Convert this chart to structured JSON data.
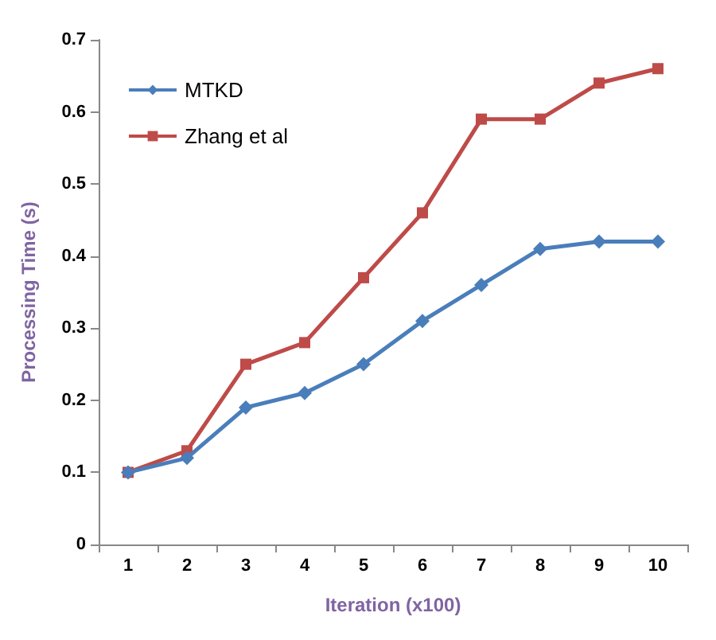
{
  "chart_data": {
    "type": "line",
    "xlabel": "Iteration (x100)",
    "ylabel": "Processing Time (s)",
    "categories": [
      "1",
      "2",
      "3",
      "4",
      "5",
      "6",
      "7",
      "8",
      "9",
      "10"
    ],
    "series": [
      {
        "name": "MTKD",
        "color": "#4a7ebb",
        "marker": "diamond",
        "values": [
          0.1,
          0.12,
          0.19,
          0.21,
          0.25,
          0.31,
          0.36,
          0.41,
          0.42,
          0.42
        ]
      },
      {
        "name": "Zhang et al",
        "color": "#be4b48",
        "marker": "square",
        "values": [
          0.1,
          0.13,
          0.25,
          0.28,
          0.37,
          0.46,
          0.59,
          0.59,
          0.64,
          0.66
        ]
      }
    ],
    "ylim": [
      0,
      0.7
    ],
    "yticks": [
      0,
      0.1,
      0.2,
      0.3,
      0.4,
      0.5,
      0.6,
      0.7
    ],
    "grid": false,
    "legend": "top left",
    "line_style": "solid"
  }
}
